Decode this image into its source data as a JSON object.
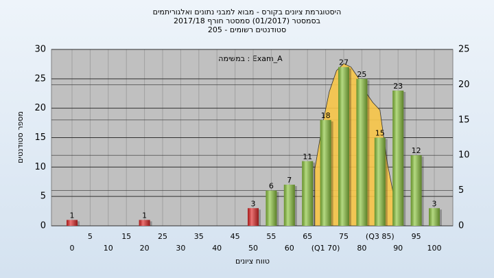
{
  "chart_data": {
    "type": "bar",
    "title": [
      "היסטוגרמת ציונים בקורס - מבוא למבני נתונים ואלגוריתמים",
      "בסמסטר  (01/2017)  סמסטר חורף 2017/18",
      "סטודנטים רשומים - 205"
    ],
    "annotation": "במשימה : Exam_A",
    "xlabel": "טווח ציונים",
    "ylabel": "מספר סטודנטים",
    "categories": [
      "0",
      "5",
      "10",
      "15",
      "20",
      "25",
      "30",
      "35",
      "40",
      "45",
      "50",
      "55",
      "60",
      "65",
      "(Q1 70)",
      "75",
      "80",
      "(Q3 85)",
      "90",
      "95",
      "100"
    ],
    "xlim": [
      0,
      100
    ],
    "series": [
      {
        "type": "bar",
        "values": [
          1,
          null,
          null,
          null,
          1,
          null,
          null,
          null,
          null,
          null,
          3,
          6,
          7,
          11,
          18,
          27,
          25,
          15,
          23,
          12,
          3
        ],
        "colors": [
          "#e02828",
          null,
          null,
          null,
          "#e02828",
          null,
          null,
          null,
          null,
          null,
          "#e02828",
          "#8dc63f",
          "#8dc63f",
          "#8dc63f",
          "#8dc63f",
          "#8dc63f",
          "#8dc63f",
          "#8dc63f",
          "#8dc63f",
          "#8dc63f",
          "#8dc63f"
        ]
      },
      {
        "type": "area",
        "axis": "y2",
        "color": "#f7c548",
        "x": [
          67,
          69,
          71,
          73,
          75,
          77,
          79,
          81,
          83,
          85,
          87,
          88.6
        ],
        "values": [
          8,
          14,
          19,
          22,
          23,
          22.5,
          21,
          19,
          17.5,
          16.4,
          9,
          4.8
        ]
      }
    ],
    "ylim": [
      0,
      30
    ],
    "yticks": [
      0,
      5,
      10,
      15,
      20,
      25,
      30
    ],
    "y2lim": [
      0,
      25
    ],
    "y2ticks": [
      0,
      5,
      10,
      15,
      20,
      25
    ],
    "grid": true
  }
}
